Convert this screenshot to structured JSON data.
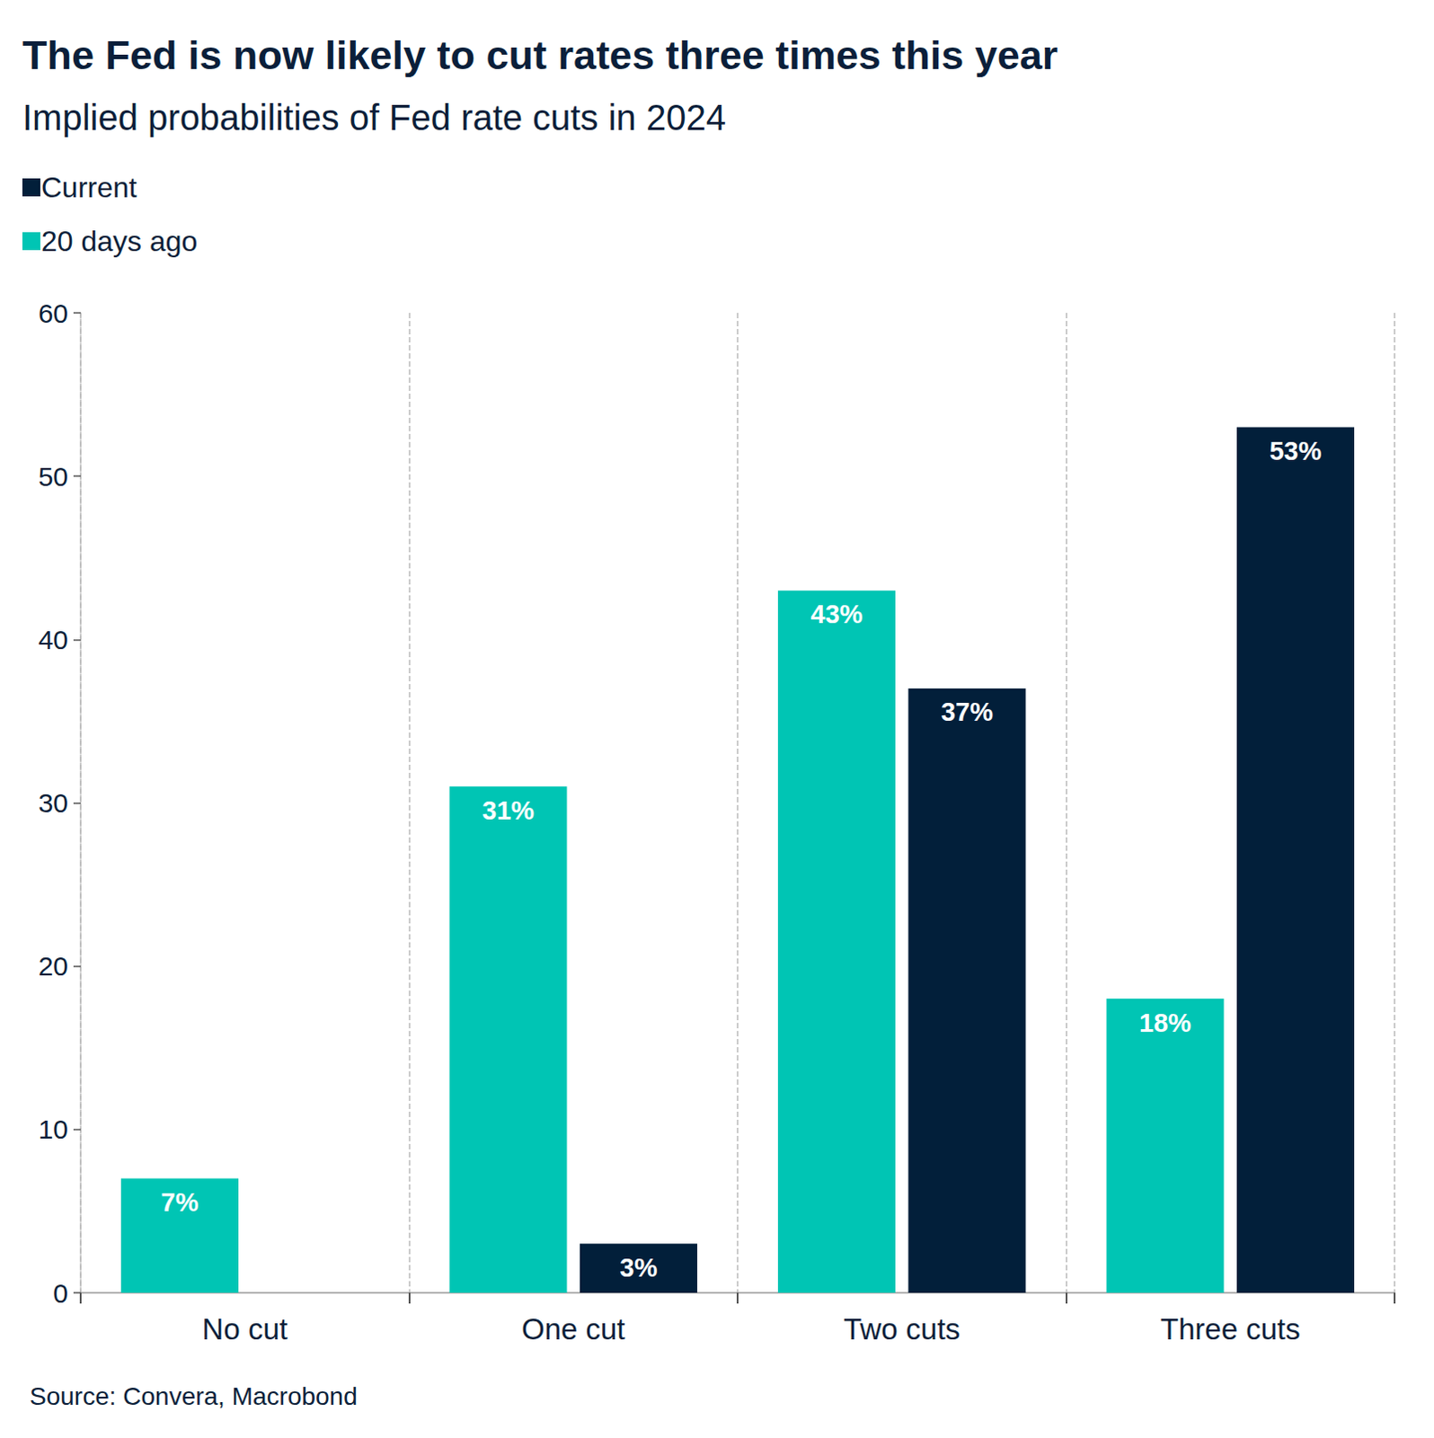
{
  "chart_data": {
    "type": "bar",
    "title": "The Fed is now likely to cut rates three times this year",
    "subtitle": "Implied probabilities of Fed rate cuts in 2024",
    "source": "Source: Convera, Macrobond",
    "categories": [
      "No cut",
      "One cut",
      "Two cuts",
      "Three cuts"
    ],
    "series": [
      {
        "name": "20 days ago",
        "color": "#00c5b4",
        "values": [
          7,
          31,
          43,
          18
        ],
        "value_labels": [
          "7%",
          "31%",
          "43%",
          "18%"
        ]
      },
      {
        "name": "Current",
        "color": "#021f3a",
        "values": [
          null,
          3,
          37,
          53
        ],
        "value_labels": [
          null,
          "3%",
          "37%",
          "53%"
        ]
      }
    ],
    "ylim": [
      0,
      60
    ],
    "yticks": [
      0,
      10,
      20,
      30,
      40,
      50,
      60
    ],
    "grid": true,
    "legend": "top-left",
    "data_labels": true
  }
}
